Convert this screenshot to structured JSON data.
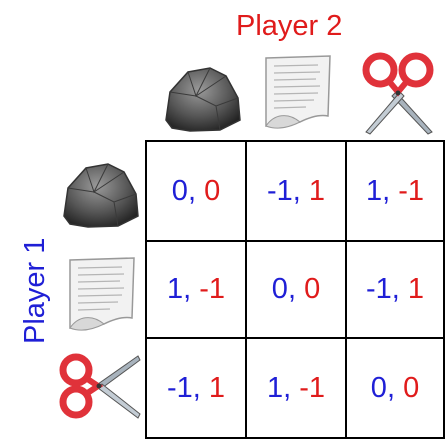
{
  "labels": {
    "player2": "Player 2",
    "player1": "Player 1"
  },
  "colors": {
    "player1": "#1f1fd6",
    "player2": "#e01b1b"
  },
  "columns": [
    {
      "icon": "rock-icon"
    },
    {
      "icon": "paper-icon"
    },
    {
      "icon": "scissors-icon"
    }
  ],
  "rows": [
    {
      "icon": "rock-icon"
    },
    {
      "icon": "paper-icon"
    },
    {
      "icon": "scissors-icon"
    }
  ],
  "payoffs": [
    [
      {
        "p1": "0",
        "p2": "0"
      },
      {
        "p1": "-1",
        "p2": "1"
      },
      {
        "p1": "1",
        "p2": "-1"
      }
    ],
    [
      {
        "p1": "1",
        "p2": "-1"
      },
      {
        "p1": "0",
        "p2": "0"
      },
      {
        "p1": "-1",
        "p2": "1"
      }
    ],
    [
      {
        "p1": "-1",
        "p2": "1"
      },
      {
        "p1": "1",
        "p2": "-1"
      },
      {
        "p1": "0",
        "p2": "0"
      }
    ]
  ],
  "separator": ", "
}
